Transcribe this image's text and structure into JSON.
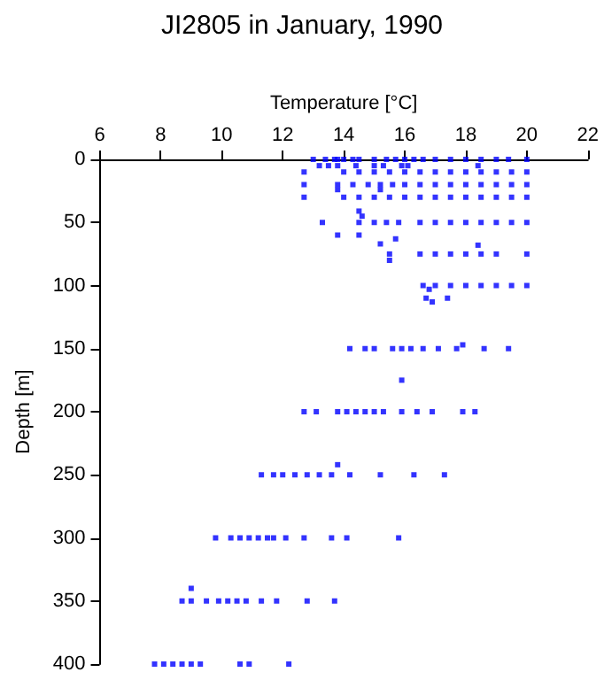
{
  "chart_data": {
    "type": "scatter",
    "title": "JI2805 in January, 1990",
    "xlabel": "Temperature [°C]",
    "ylabel": "Depth [m]",
    "xlim": [
      6,
      22
    ],
    "xticks": [
      6,
      8,
      10,
      12,
      14,
      16,
      18,
      20,
      22
    ],
    "ylim": [
      400,
      0
    ],
    "yticks": [
      0,
      50,
      100,
      150,
      200,
      250,
      300,
      350,
      400
    ],
    "grid": false,
    "marker": "square",
    "series": [
      {
        "color": "#0000ff",
        "x": [
          13.0,
          13.4,
          13.7,
          13.8,
          14.0,
          14.3,
          14.5,
          15.0,
          15.4,
          15.7,
          16.0,
          16.3,
          16.6,
          17.0,
          17.5,
          18.0,
          18.5,
          19.0,
          19.4,
          20.0,
          13.2,
          13.5,
          13.8,
          14.4,
          15.0,
          15.3,
          15.9,
          16.1,
          18.4,
          12.7,
          14.0,
          14.5,
          15.0,
          15.5,
          16.0,
          16.5,
          17.0,
          17.5,
          18.0,
          18.5,
          19.0,
          19.5,
          20.0,
          12.7,
          13.8,
          14.3,
          14.8,
          15.2,
          15.6,
          16.0,
          16.5,
          17.0,
          17.5,
          18.0,
          18.5,
          19.0,
          19.5,
          20.0,
          13.8,
          15.2,
          12.7,
          14.0,
          14.5,
          15.0,
          15.5,
          16.0,
          16.5,
          17.0,
          17.5,
          18.0,
          18.5,
          19.0,
          19.5,
          20.0,
          14.5,
          14.6,
          13.3,
          14.5,
          15.0,
          15.4,
          15.8,
          16.5,
          17.0,
          17.5,
          18.0,
          18.5,
          19.0,
          19.5,
          20.0,
          13.8,
          14.5,
          15.7,
          15.2,
          18.4,
          15.5,
          16.5,
          17.0,
          17.5,
          18.0,
          18.5,
          19.0,
          20.0,
          15.5,
          16.6,
          17.0,
          17.5,
          18.0,
          18.5,
          19.0,
          19.5,
          20.0,
          16.8,
          16.7,
          17.4,
          16.9,
          17.9,
          14.2,
          14.7,
          15.0,
          15.6,
          15.9,
          16.2,
          16.6,
          17.1,
          17.7,
          18.6,
          19.4,
          15.9,
          12.7,
          13.1,
          13.8,
          14.1,
          14.4,
          14.7,
          15.0,
          15.3,
          15.9,
          16.4,
          16.9,
          17.9,
          18.3,
          13.8,
          11.3,
          11.7,
          12.0,
          12.4,
          12.8,
          13.2,
          13.6,
          14.2,
          15.2,
          16.3,
          17.3,
          9.8,
          10.3,
          10.6,
          10.9,
          11.2,
          11.5,
          11.7,
          12.1,
          12.7,
          13.6,
          14.1,
          15.8,
          9.0,
          8.7,
          9.0,
          9.5,
          9.9,
          10.2,
          10.5,
          10.8,
          11.3,
          11.8,
          12.8,
          13.7,
          7.8,
          8.1,
          8.4,
          8.7,
          9.0,
          9.3,
          10.6,
          10.9,
          12.2
        ],
        "values": [
          0,
          0,
          0,
          0,
          0,
          0,
          0,
          0,
          0,
          0,
          0,
          0,
          0,
          0,
          0,
          0,
          0,
          0,
          0,
          0,
          5,
          5,
          5,
          5,
          5,
          5,
          5,
          5,
          5,
          10,
          10,
          10,
          10,
          10,
          10,
          10,
          10,
          10,
          10,
          10,
          10,
          10,
          10,
          20,
          20,
          20,
          20,
          20,
          20,
          20,
          20,
          20,
          20,
          20,
          20,
          20,
          20,
          20,
          24,
          24,
          30,
          30,
          30,
          30,
          30,
          30,
          30,
          30,
          30,
          30,
          30,
          30,
          30,
          30,
          41,
          45,
          50,
          50,
          50,
          50,
          50,
          50,
          50,
          50,
          50,
          50,
          50,
          50,
          50,
          60,
          60,
          63,
          67,
          68,
          75,
          75,
          75,
          75,
          75,
          75,
          75,
          75,
          80,
          100,
          100,
          100,
          100,
          100,
          100,
          100,
          100,
          103,
          110,
          110,
          113,
          147,
          150,
          150,
          150,
          150,
          150,
          150,
          150,
          150,
          150,
          150,
          150,
          175,
          200,
          200,
          200,
          200,
          200,
          200,
          200,
          200,
          200,
          200,
          200,
          200,
          200,
          242,
          250,
          250,
          250,
          250,
          250,
          250,
          250,
          250,
          250,
          250,
          250,
          300,
          300,
          300,
          300,
          300,
          300,
          300,
          300,
          300,
          300,
          300,
          300,
          340,
          350,
          350,
          350,
          350,
          350,
          350,
          350,
          350,
          350,
          350,
          350,
          400,
          400,
          400,
          400,
          400,
          400,
          400,
          400,
          400
        ]
      }
    ]
  }
}
